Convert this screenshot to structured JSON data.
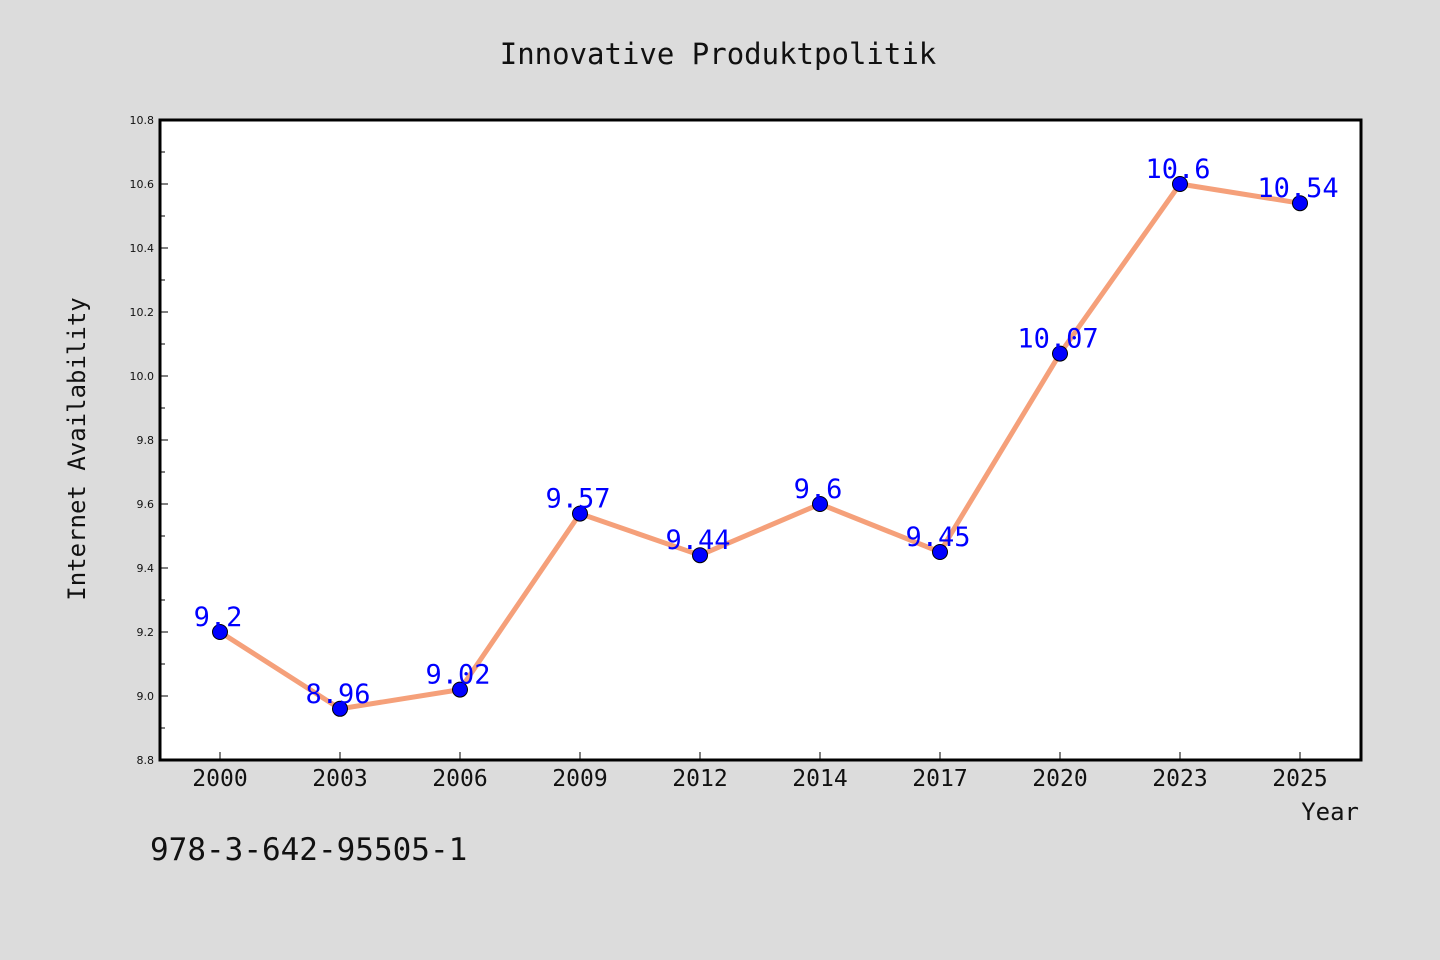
{
  "isbn": "978-3-642-95505-1",
  "chart_data": {
    "type": "line",
    "title": "Innovative Produktpolitik",
    "xlabel": "Year",
    "ylabel": "Internet Availability",
    "categories": [
      "2000",
      "2003",
      "2006",
      "2009",
      "2012",
      "2014",
      "2017",
      "2020",
      "2023",
      "2025"
    ],
    "series": [
      {
        "values": [
          9.2,
          8.96,
          9.02,
          9.57,
          9.44,
          9.6,
          9.45,
          10.07,
          10.6,
          10.54
        ]
      }
    ],
    "data_labels": [
      "9.2",
      "8.96",
      "9.02",
      "9.57",
      "9.44",
      "9.6",
      "9.45",
      "10.07",
      "10.6",
      "10.54"
    ],
    "ylim": [
      8.8,
      10.8
    ],
    "yticks": [
      "8.8",
      "9.0",
      "9.2",
      "9.4",
      "9.6",
      "9.8",
      "10.0",
      "10.2",
      "10.4",
      "10.6",
      "10.8"
    ],
    "grid": false,
    "legend": "none",
    "colors": {
      "line": "#f5a07a",
      "marker": "#0000ff",
      "label": "#0000ff",
      "background": "#dcdcdc",
      "plot_background": "#ffffff"
    }
  }
}
